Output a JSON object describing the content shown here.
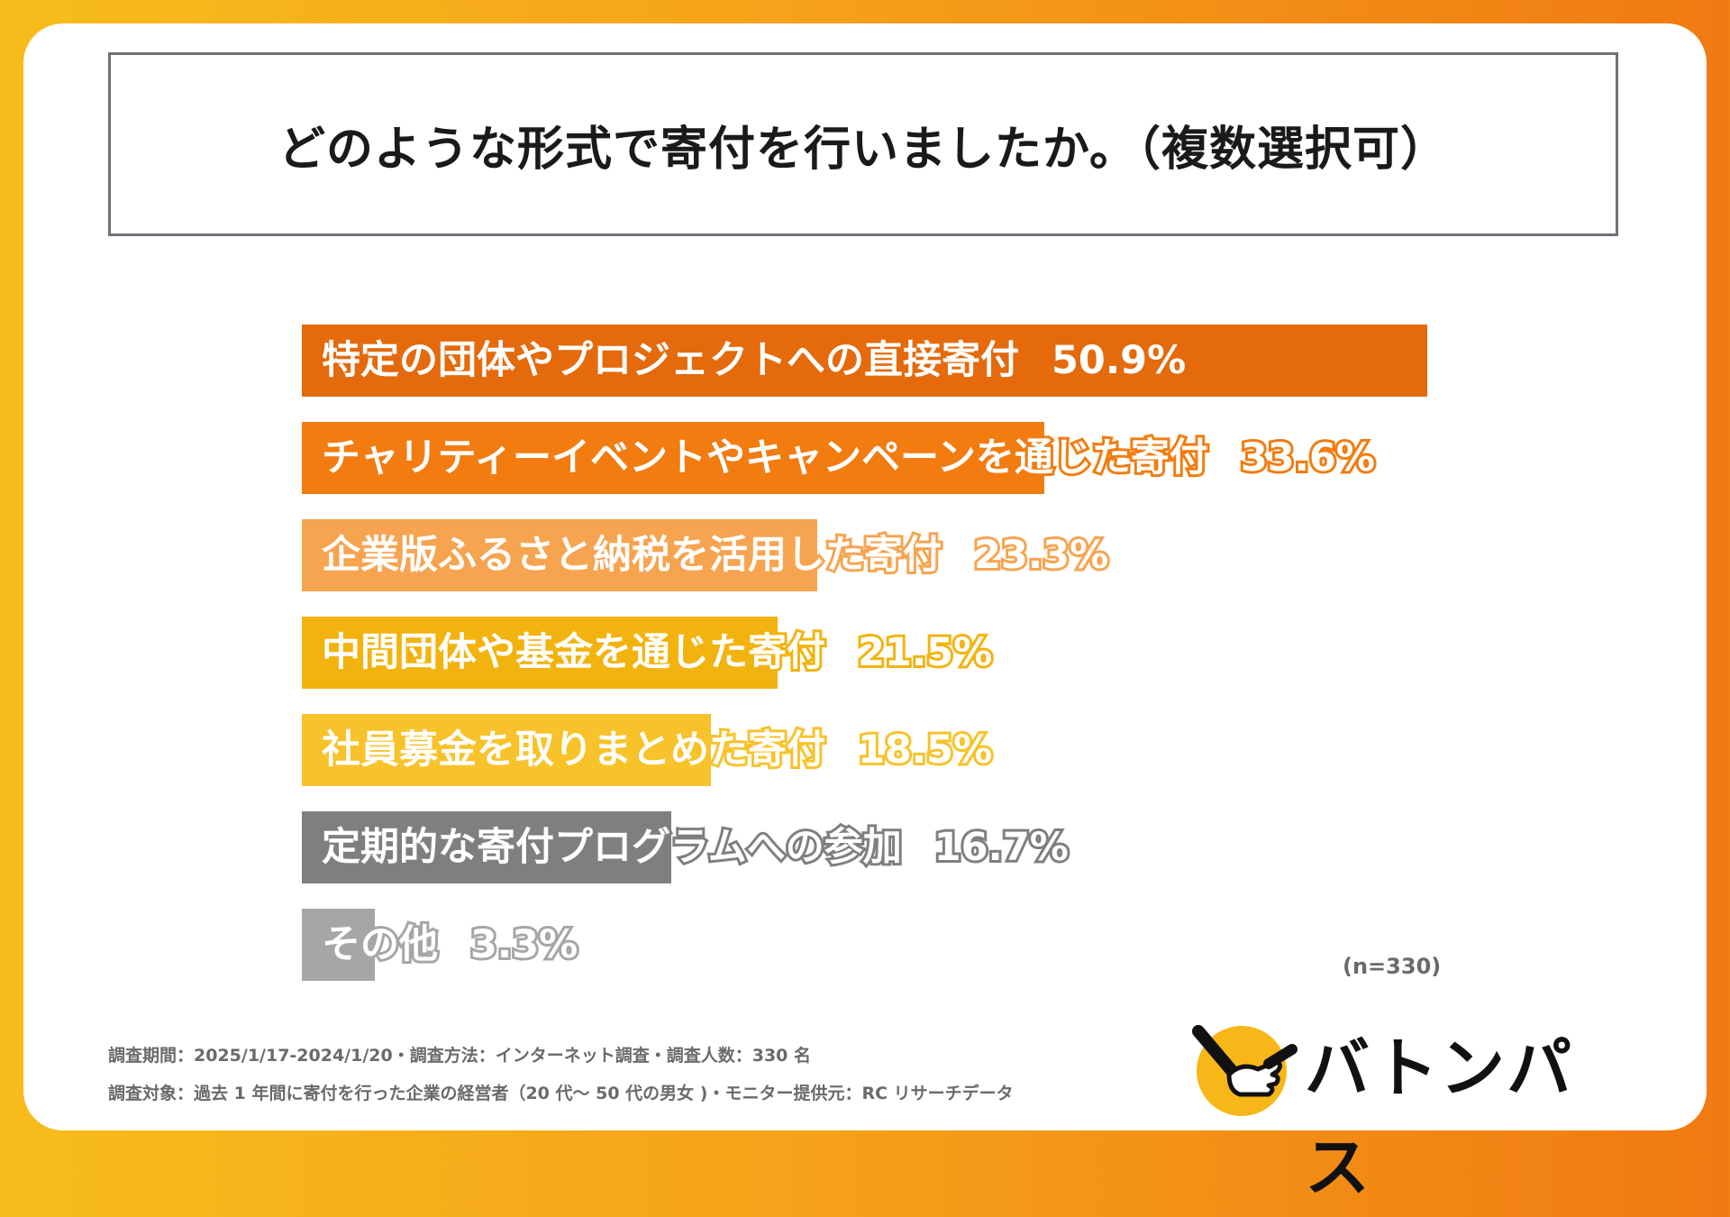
{
  "title": "どのような形式で寄付を行いましたか。（複数選択可）",
  "chart_data": {
    "type": "bar",
    "orientation": "horizontal",
    "title": "どのような形式で寄付を行いましたか。（複数選択可）",
    "unit": "%",
    "xlim": [
      0,
      50.9
    ],
    "categories": [
      "特定の団体やプロジェクトへの直接寄付",
      "チャリティーイベントやキャンペーンを通じた寄付",
      "企業版ふるさと納税を活用した寄付",
      "中間団体や基金を通じた寄付",
      "社員募金を取りまとめた寄付",
      "定期的な寄付プログラムへの参加",
      "その他"
    ],
    "values": [
      50.9,
      33.6,
      23.3,
      21.5,
      18.5,
      16.7,
      3.3
    ],
    "value_labels": [
      "50.9%",
      "33.6%",
      "23.3%",
      "21.5%",
      "18.5%",
      "16.7%",
      "3.3%"
    ],
    "colors": [
      "#e46a0c",
      "#f27c10",
      "#f7a450",
      "#f3b30f",
      "#f8c22a",
      "#7f7f7f",
      "#a6a6a6"
    ],
    "grid": false,
    "legend": "none"
  },
  "sample_note": "(n=330)",
  "footnotes": [
    "調査期間：2025/1/17-2024/1/20・調査方法：インターネット調査・調査人数：330 名",
    "調査対象：過去 1 年間に寄付を行った企業の経営者（20 代〜 50 代の男女 )・モニター提供元：RC リサーチデータ"
  ],
  "logo": {
    "text": "バトンパス",
    "icon": "baton-hand-icon",
    "color": "#f7b718"
  }
}
